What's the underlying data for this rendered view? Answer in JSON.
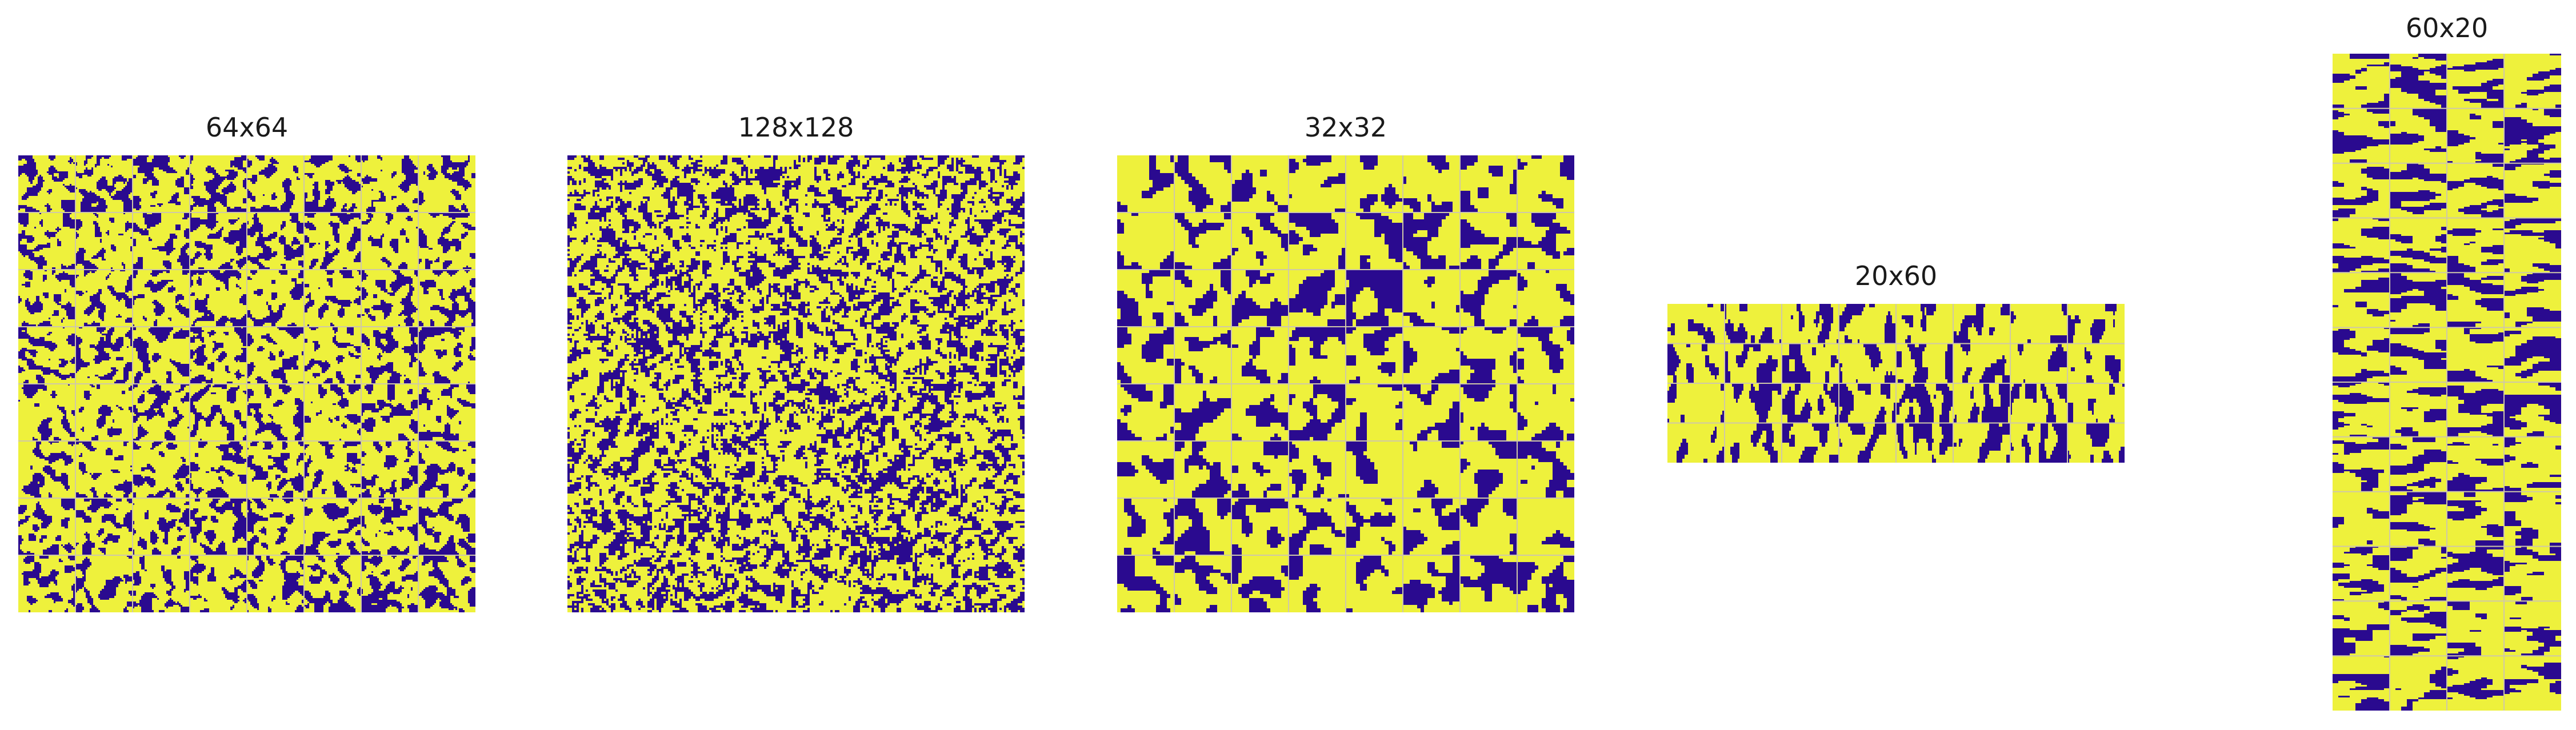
{
  "colors": {
    "low": "#2a0a8f",
    "high": "#eef13c",
    "grid_line": "#cfc8a8"
  },
  "panels": [
    {
      "id": "p64",
      "title": "64x64",
      "lattice": [
        64,
        64
      ],
      "tiles": [
        8,
        8
      ]
    },
    {
      "id": "p128",
      "title": "128x128",
      "lattice": [
        128,
        128
      ],
      "tiles": [
        1,
        1
      ]
    },
    {
      "id": "p32",
      "title": "32x32",
      "lattice": [
        32,
        32
      ],
      "tiles": [
        8,
        8
      ]
    },
    {
      "id": "p2060",
      "title": "20x60",
      "lattice": [
        20,
        60
      ],
      "tiles": [
        4,
        8
      ]
    },
    {
      "id": "p6020",
      "title": "60x20",
      "lattice": [
        60,
        20
      ],
      "tiles": [
        12,
        4
      ]
    }
  ]
}
